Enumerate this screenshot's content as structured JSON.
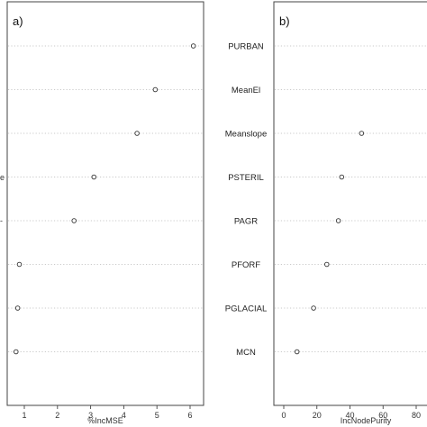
{
  "chart_data": [
    {
      "type": "scatter",
      "panel_label": "a)",
      "xlabel": "%IncMSE",
      "xticks": [
        1,
        2,
        3,
        4,
        5,
        6
      ],
      "xlim": [
        0.6,
        6.3
      ],
      "left_edge_fragments": [
        "e",
        "-"
      ],
      "values": [
        6.1,
        4.95,
        4.4,
        3.1,
        2.5,
        0.85,
        0.8,
        0.75
      ],
      "grid": "dotted horizontal"
    },
    {
      "type": "scatter",
      "panel_label": "b)",
      "xlabel": "IncNodePurity",
      "xticks": [
        0,
        20,
        40,
        60,
        80
      ],
      "xlim": [
        -5,
        90
      ],
      "categories": [
        "PURBAN",
        "MeanEl",
        "Meanslope",
        "PSTERIL",
        "PAGR",
        "PFORF",
        "PGLACIAL",
        "MCN"
      ],
      "values": [
        null,
        null,
        47,
        35,
        33,
        26,
        18,
        8
      ],
      "grid": "dotted horizontal"
    }
  ]
}
